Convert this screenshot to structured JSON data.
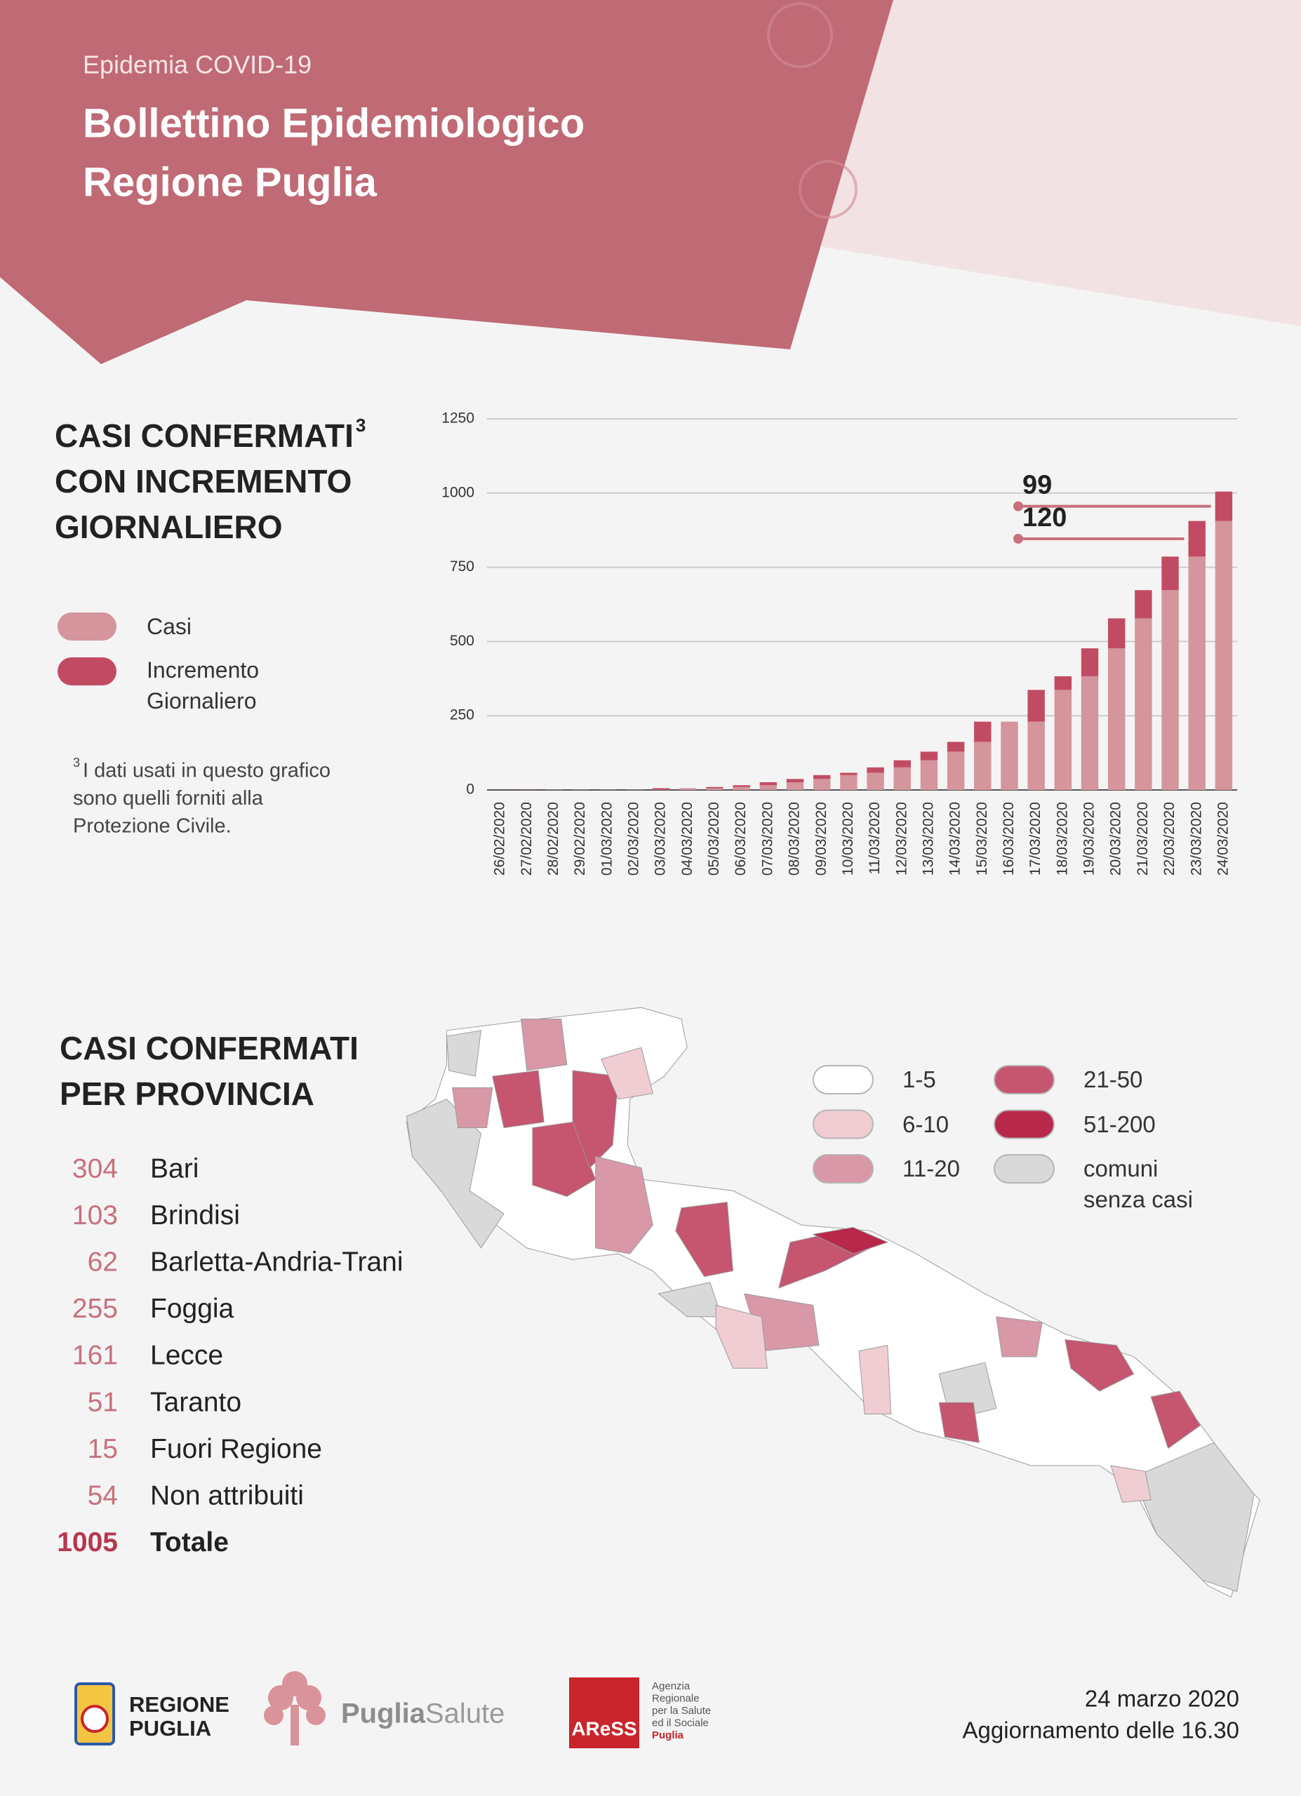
{
  "header": {
    "subtitle": "Epidemia COVID-19",
    "title": [
      "Bollettino Epidemiologico",
      "Regione Puglia"
    ]
  },
  "chart_data": {
    "type": "bar",
    "stacked": true,
    "title": [
      "CASI CONFERMATI",
      "CON INCREMENTO",
      "GIORNALIERO"
    ],
    "note": {
      "ref": "3",
      "text": [
        "I dati usati in questo grafico",
        "sono quelli forniti alla",
        "Protezione Civile."
      ]
    },
    "categories": [
      "26/02/2020",
      "27/02/2020",
      "28/02/2020",
      "29/02/2020",
      "01/03/2020",
      "02/03/2020",
      "03/03/2020",
      "04/03/2020",
      "05/03/2020",
      "06/03/2020",
      "07/03/2020",
      "08/03/2020",
      "09/03/2020",
      "10/03/2020",
      "11/03/2020",
      "12/03/2020",
      "13/03/2020",
      "14/03/2020",
      "15/03/2020",
      "16/03/2020",
      "17/03/2020",
      "18/03/2020",
      "19/03/2020",
      "20/03/2020",
      "21/03/2020",
      "22/03/2020",
      "23/03/2020",
      "24/03/2020"
    ],
    "series": [
      {
        "name": "Casi",
        "color": "#d4959c",
        "values": [
          0,
          0,
          1,
          1,
          1,
          1,
          1,
          6,
          6,
          10,
          16,
          26,
          37,
          50,
          58,
          76,
          100,
          129,
          162,
          230,
          230,
          337,
          383,
          477,
          578,
          673,
          786,
          906
        ]
      },
      {
        "name": "Incremento Giornaliero",
        "color": "#c24b64",
        "values": [
          0,
          1,
          0,
          0,
          0,
          0,
          5,
          0,
          4,
          6,
          10,
          11,
          13,
          8,
          18,
          24,
          29,
          33,
          68,
          0,
          107,
          46,
          94,
          101,
          95,
          113,
          120,
          99
        ]
      }
    ],
    "annotations": [
      {
        "series": 1,
        "index": 27
      },
      {
        "series": 1,
        "index": 26
      }
    ],
    "ylim": [
      0,
      1250
    ],
    "yticks": [
      0,
      250,
      500,
      750,
      1000,
      1250
    ],
    "grid": true,
    "legend": "left"
  },
  "provinces": {
    "title": [
      "CASI CONFERMATI",
      "PER PROVINCIA"
    ],
    "rows": [
      {
        "value": 304,
        "name": "Bari"
      },
      {
        "value": 103,
        "name": "Brindisi"
      },
      {
        "value": 62,
        "name": "Barletta-Andria-Trani"
      },
      {
        "value": 255,
        "name": "Foggia"
      },
      {
        "value": 161,
        "name": "Lecce"
      },
      {
        "value": 51,
        "name": "Taranto"
      },
      {
        "value": 15,
        "name": "Fuori Regione"
      },
      {
        "value": 54,
        "name": "Non attribuiti"
      }
    ],
    "total": {
      "value": 1005,
      "name": "Totale"
    }
  },
  "map_legend": {
    "items": [
      {
        "label": "1-5",
        "color": "#ffffff"
      },
      {
        "label": "6-10",
        "color": "#f0cdd2"
      },
      {
        "label": "11-20",
        "color": "#d898a8"
      },
      {
        "label": "21-50",
        "color": "#c65570"
      },
      {
        "label": "51-200",
        "color": "#b8284a"
      },
      {
        "label": "comuni senza casi",
        "color": "#d9d9d9"
      }
    ]
  },
  "footer": {
    "regione": [
      "REGIONE",
      "PUGLIA"
    ],
    "puglia_salute": [
      "Puglia",
      "Salute"
    ],
    "aress": {
      "mark": "AReSS",
      "text": [
        "Agenzia",
        "Regionale",
        "per la Salute",
        "ed il Sociale",
        "Puglia"
      ]
    },
    "date": "24 marzo 2020",
    "update": "Aggiornamento delle 16.30"
  }
}
